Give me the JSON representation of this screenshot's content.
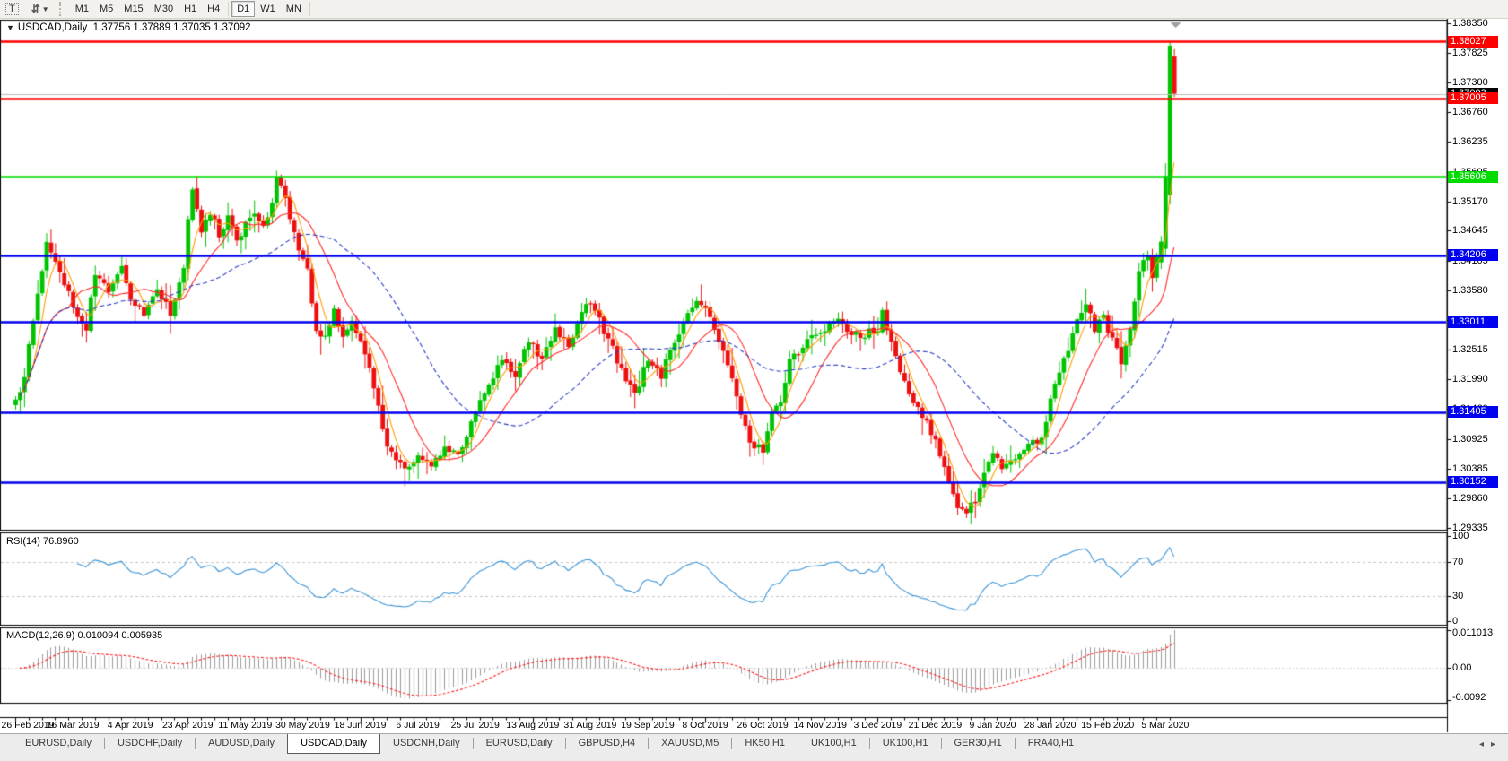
{
  "toolbar": {
    "text_tool_label": "T",
    "timeframe_groups": [
      [
        "M1",
        "M5",
        "M15",
        "M30",
        "H1",
        "H4"
      ],
      [
        "D1",
        "W1",
        "MN"
      ]
    ],
    "active_timeframe": "D1"
  },
  "chart": {
    "symbol_period": "USDCAD,Daily",
    "ohlc_text": "1.37756 1.37889 1.37035 1.37092"
  },
  "chart_data": {
    "type": "candlestick",
    "title": "USDCAD,Daily",
    "timeframe": "Daily",
    "open": 1.37756,
    "high": 1.37889,
    "low": 1.37035,
    "close": 1.37092,
    "up_color": "#00C400",
    "down_color": "#EE0F0F",
    "y_axis": {
      "price_top": 1.38414,
      "price_bottom": 1.29301,
      "ticks": [
        "1.38350",
        "1.37825",
        "1.37300",
        "1.36760",
        "1.36235",
        "1.35695",
        "1.35170",
        "1.34645",
        "1.34105",
        "1.33580",
        "1.33055",
        "1.32515",
        "1.31990",
        "1.31460",
        "1.30925",
        "1.30385",
        "1.29860",
        "1.29335"
      ]
    },
    "x_axis": {
      "labels": [
        "26 Feb 2019",
        "16 Mar 2019",
        "4 Apr 2019",
        "23 Apr 2019",
        "11 May 2019",
        "30 May 2019",
        "18 Jun 2019",
        "6 Jul 2019",
        "25 Jul 2019",
        "13 Aug 2019",
        "31 Aug 2019",
        "19 Sep 2019",
        "8 Oct 2019",
        "26 Oct 2019",
        "14 Nov 2019",
        "3 Dec 2019",
        "21 Dec 2019",
        "9 Jan 2020",
        "28 Jan 2020",
        "15 Feb 2020",
        "5 Mar 2020"
      ],
      "bars_per_label": 13
    },
    "bar_count": 263,
    "levels": [
      {
        "label": "1.38027",
        "price": 1.38027,
        "color": "#FF0000"
      },
      {
        "label": "1.37005",
        "price": 1.37005,
        "color": "#FF0000"
      },
      {
        "label": "1.35606",
        "price": 1.35606,
        "color": "#00DB00"
      },
      {
        "label": "1.34206",
        "price": 1.34206,
        "color": "#0000F0"
      },
      {
        "label": "1.33011",
        "price": 1.33011,
        "color": "#0000F0"
      },
      {
        "label": "1.31405",
        "price": 1.31405,
        "color": "#0000F0"
      },
      {
        "label": "1.30152",
        "price": 1.30152,
        "color": "#0000F0"
      }
    ],
    "current_price": {
      "label": "1.37092",
      "value": 1.37092,
      "box_color": "#000000",
      "line_color": "#BDBDBD"
    },
    "moving_averages": [
      {
        "period": 5,
        "color": "#FF9C00",
        "style": "solid"
      },
      {
        "period": 13,
        "color": "#FF2A2A",
        "style": "solid"
      },
      {
        "period": 34,
        "color": "#2A3CC4",
        "style": "dash"
      }
    ],
    "close_anchors": [
      [
        0,
        1.3165
      ],
      [
        2,
        1.32
      ],
      [
        4,
        1.331
      ],
      [
        7,
        1.3445
      ],
      [
        10,
        1.339
      ],
      [
        13,
        1.333
      ],
      [
        16,
        1.329
      ],
      [
        18,
        1.339
      ],
      [
        21,
        1.335
      ],
      [
        24,
        1.3395
      ],
      [
        26,
        1.3345
      ],
      [
        29,
        1.331
      ],
      [
        32,
        1.336
      ],
      [
        35,
        1.332
      ],
      [
        38,
        1.339
      ],
      [
        39,
        1.348
      ],
      [
        40,
        1.3545
      ],
      [
        42,
        1.3465
      ],
      [
        44,
        1.35
      ],
      [
        46,
        1.3455
      ],
      [
        48,
        1.349
      ],
      [
        50,
        1.3445
      ],
      [
        52,
        1.3475
      ],
      [
        54,
        1.35
      ],
      [
        56,
        1.3465
      ],
      [
        58,
        1.352
      ],
      [
        59,
        1.3552
      ],
      [
        60,
        1.354
      ],
      [
        62,
        1.349
      ],
      [
        64,
        1.3435
      ],
      [
        66,
        1.339
      ],
      [
        68,
        1.329
      ],
      [
        70,
        1.327
      ],
      [
        72,
        1.332
      ],
      [
        74,
        1.328
      ],
      [
        76,
        1.3305
      ],
      [
        78,
        1.327
      ],
      [
        80,
        1.322
      ],
      [
        82,
        1.315
      ],
      [
        84,
        1.3085
      ],
      [
        86,
        1.305
      ],
      [
        88,
        1.304
      ],
      [
        91,
        1.306
      ],
      [
        94,
        1.304
      ],
      [
        97,
        1.308
      ],
      [
        100,
        1.306
      ],
      [
        104,
        1.314
      ],
      [
        107,
        1.319
      ],
      [
        110,
        1.324
      ],
      [
        113,
        1.321
      ],
      [
        116,
        1.3265
      ],
      [
        119,
        1.3235
      ],
      [
        122,
        1.329
      ],
      [
        125,
        1.326
      ],
      [
        128,
        1.332
      ],
      [
        130,
        1.334
      ],
      [
        134,
        1.327
      ],
      [
        137,
        1.3215
      ],
      [
        140,
        1.317
      ],
      [
        143,
        1.3235
      ],
      [
        146,
        1.3205
      ],
      [
        148,
        1.325
      ],
      [
        151,
        1.3305
      ],
      [
        154,
        1.334
      ],
      [
        156,
        1.332
      ],
      [
        158,
        1.329
      ],
      [
        160,
        1.3245
      ],
      [
        162,
        1.32
      ],
      [
        164,
        1.313
      ],
      [
        166,
        1.309
      ],
      [
        169,
        1.307
      ],
      [
        171,
        1.314
      ],
      [
        173,
        1.3165
      ],
      [
        175,
        1.323
      ],
      [
        178,
        1.326
      ],
      [
        182,
        1.328
      ],
      [
        185,
        1.331
      ],
      [
        188,
        1.329
      ],
      [
        191,
        1.327
      ],
      [
        193,
        1.329
      ],
      [
        195,
        1.328
      ],
      [
        196,
        1.3315
      ],
      [
        199,
        1.324
      ],
      [
        202,
        1.3175
      ],
      [
        205,
        1.3135
      ],
      [
        208,
        1.309
      ],
      [
        211,
        1.302
      ],
      [
        213,
        1.2975
      ],
      [
        215,
        1.296
      ],
      [
        217,
        1.2985
      ],
      [
        219,
        1.303
      ],
      [
        221,
        1.307
      ],
      [
        223,
        1.3045
      ],
      [
        226,
        1.3055
      ],
      [
        229,
        1.308
      ],
      [
        232,
        1.309
      ],
      [
        234,
        1.317
      ],
      [
        236,
        1.321
      ],
      [
        238,
        1.325
      ],
      [
        240,
        1.33
      ],
      [
        242,
        1.333
      ],
      [
        244,
        1.329
      ],
      [
        246,
        1.331
      ],
      [
        248,
        1.327
      ],
      [
        250,
        1.323
      ],
      [
        252,
        1.329
      ],
      [
        254,
        1.339
      ],
      [
        256,
        1.342
      ],
      [
        257,
        1.338
      ],
      [
        258,
        1.342
      ],
      [
        259,
        1.3445
      ],
      [
        260,
        1.3562
      ],
      [
        261,
        1.3795
      ],
      [
        262,
        1.37092
      ]
    ],
    "last_bars": [
      {
        "i": 259,
        "o": 1.3408,
        "h": 1.3455,
        "l": 1.3396,
        "c": 1.3445
      },
      {
        "i": 260,
        "o": 1.3432,
        "h": 1.3585,
        "l": 1.342,
        "c": 1.3562
      },
      {
        "i": 261,
        "o": 1.3528,
        "h": 1.38027,
        "l": 1.3512,
        "c": 1.3795
      },
      {
        "i": 262,
        "o": 1.37756,
        "h": 1.37889,
        "l": 1.37035,
        "c": 1.37092
      }
    ],
    "shift_marker": {
      "bar": 262,
      "color": "#9E9E9E"
    },
    "rsi": {
      "label": "RSI(14) 76.8960",
      "period": 14,
      "value": 76.896,
      "upper_level": 70,
      "lower_level": 30,
      "axis_labels": [
        {
          "v": 100,
          "t": "100"
        },
        {
          "v": 70,
          "t": "70"
        },
        {
          "v": 30,
          "t": "30"
        },
        {
          "v": 0,
          "t": "0"
        }
      ],
      "color": "#3E96D8"
    },
    "macd": {
      "label": "MACD(12,26,9) 0.010094 0.005935",
      "fast": 12,
      "slow": 26,
      "signal_period": 9,
      "macd_value": 0.010094,
      "signal_value": 0.005935,
      "axis": {
        "max": 0.011013,
        "max_label": "0.011013",
        "zero_label": "0.00",
        "min": -0.0092,
        "min_label": "-0.0092"
      },
      "histogram_color": "#9C9C9C",
      "signal_color": "#FF2020"
    }
  },
  "tabs": {
    "items": [
      "EURUSD,Daily",
      "USDCHF,Daily",
      "AUDUSD,Daily",
      "USDCAD,Daily",
      "USDCNH,Daily",
      "EURUSD,Daily",
      "GBPUSD,H4",
      "XAUUSD,M5",
      "HK50,H1",
      "UK100,H1",
      "UK100,H1",
      "GER30,H1",
      "FRA40,H1"
    ],
    "active_index": 3,
    "scroll_left_icon": "◂",
    "scroll_right_icon": "▸"
  }
}
